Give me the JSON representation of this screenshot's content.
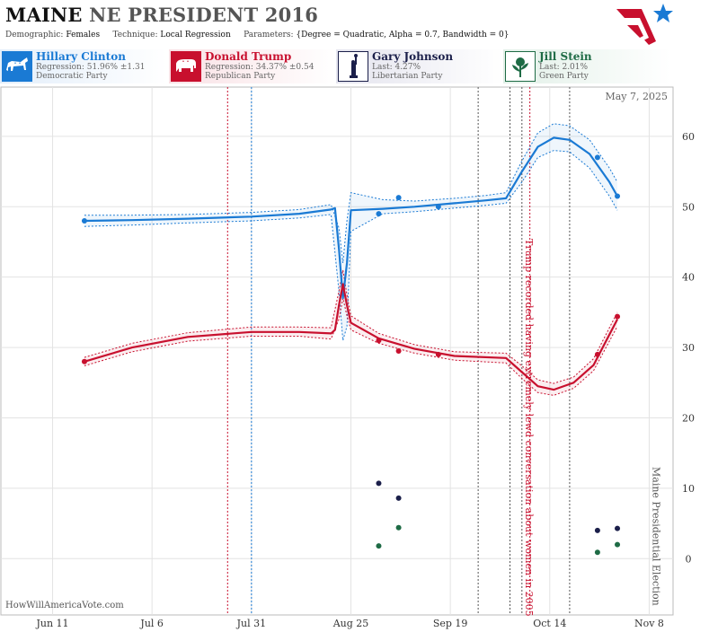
{
  "header": {
    "state": "MAINE",
    "title_rest": "NE PRESIDENT 2016",
    "demographic_label": "Demographic:",
    "demographic_value": "Females",
    "technique_label": "Technique:",
    "technique_value": "Local Regression",
    "parameters_label": "Parameters:",
    "parameters_value": "{Degree = Quadratic, Alpha = 0.7, Bandwidth = 0}"
  },
  "candidates": [
    {
      "name": "Hillary Clinton",
      "line1": "Regression: 51.96% ±1.31",
      "line2": "Democratic Party",
      "color": "#1a7ad4",
      "icon": "donkey-icon"
    },
    {
      "name": "Donald Trump",
      "line1": "Regression: 34.37% ±0.54",
      "line2": "Republican Party",
      "color": "#c8102e",
      "icon": "elephant-icon"
    },
    {
      "name": "Gary Johnson",
      "line1": "Last: 4.27%",
      "line2": "Libertarian Party",
      "color": "#1b1f4a",
      "icon": "liberty-icon"
    },
    {
      "name": "Jill Stein",
      "line1": "Last: 2.01%",
      "line2": "Green Party",
      "color": "#1e6b45",
      "icon": "flower-icon"
    }
  ],
  "footer": "HowWillAmericaVote.com",
  "chart_data": {
    "type": "line",
    "date_label": "May 7, 2025",
    "x_tick_labels": [
      "Jun 11",
      "Jul 6",
      "Jul 31",
      "Aug 25",
      "Sep 19",
      "Oct 14",
      "Nov 8"
    ],
    "x_tick_dates": [
      "2016-06-11",
      "2016-07-06",
      "2016-07-31",
      "2016-08-25",
      "2016-09-19",
      "2016-10-14",
      "2016-11-08"
    ],
    "xlim": [
      "2016-05-29",
      "2016-11-14"
    ],
    "y_ticks": [
      0,
      10,
      20,
      30,
      40,
      50,
      60
    ],
    "ylim": [
      -8,
      67
    ],
    "grid": true,
    "annotations": [
      {
        "date": "2016-10-07",
        "text": "Trump recorded having extremely lewd conversation about women in 2005",
        "color": "#c8102e"
      },
      {
        "date": "2016-11-08",
        "text": "Maine Presidential Election",
        "color": "#555555"
      }
    ],
    "event_lines": [
      {
        "date": "2016-07-25",
        "color": "#c8102e"
      },
      {
        "date": "2016-07-31",
        "color": "#1a7ad4"
      },
      {
        "date": "2016-09-26",
        "color": "#555555"
      },
      {
        "date": "2016-10-04",
        "color": "#555555"
      },
      {
        "date": "2016-10-07",
        "color": "#555555"
      },
      {
        "date": "2016-10-09",
        "color": "#c8102e"
      },
      {
        "date": "2016-10-19",
        "color": "#555555"
      }
    ],
    "series": [
      {
        "name": "Hillary Clinton",
        "color": "#1a7ad4",
        "trend": [
          [
            "2016-06-19",
            48.0
          ],
          [
            "2016-07-01",
            48.1
          ],
          [
            "2016-07-15",
            48.3
          ],
          [
            "2016-07-31",
            48.6
          ],
          [
            "2016-08-12",
            49.0
          ],
          [
            "2016-08-20",
            49.6
          ],
          [
            "2016-08-21",
            49.8
          ],
          [
            "2016-08-22",
            44.0
          ],
          [
            "2016-08-23",
            37.0
          ],
          [
            "2016-08-24",
            42.0
          ],
          [
            "2016-08-25",
            49.5
          ],
          [
            "2016-09-02",
            49.7
          ],
          [
            "2016-09-10",
            50.0
          ],
          [
            "2016-09-20",
            50.5
          ],
          [
            "2016-09-28",
            50.9
          ],
          [
            "2016-10-03",
            51.2
          ],
          [
            "2016-10-07",
            55.0
          ],
          [
            "2016-10-11",
            58.5
          ],
          [
            "2016-10-15",
            59.8
          ],
          [
            "2016-10-19",
            59.5
          ],
          [
            "2016-10-24",
            57.5
          ],
          [
            "2016-10-29",
            53.5
          ],
          [
            "2016-10-31",
            51.5
          ]
        ],
        "band": [
          [
            "2016-06-19",
            47.2,
            48.8
          ],
          [
            "2016-07-01",
            47.4,
            48.8
          ],
          [
            "2016-07-15",
            47.7,
            48.9
          ],
          [
            "2016-07-31",
            48.0,
            49.2
          ],
          [
            "2016-08-12",
            48.4,
            49.6
          ],
          [
            "2016-08-20",
            48.9,
            50.3
          ],
          [
            "2016-08-22",
            38.0,
            47.0
          ],
          [
            "2016-08-23",
            31.0,
            42.0
          ],
          [
            "2016-08-24",
            33.0,
            48.0
          ],
          [
            "2016-08-25",
            46.5,
            52.0
          ],
          [
            "2016-09-02",
            49.0,
            51.0
          ],
          [
            "2016-09-10",
            49.3,
            50.8
          ],
          [
            "2016-09-20",
            49.8,
            51.2
          ],
          [
            "2016-09-28",
            50.2,
            51.6
          ],
          [
            "2016-10-03",
            50.5,
            52.0
          ],
          [
            "2016-10-07",
            53.5,
            56.5
          ],
          [
            "2016-10-11",
            57.0,
            60.5
          ],
          [
            "2016-10-15",
            58.0,
            61.8
          ],
          [
            "2016-10-19",
            57.8,
            61.5
          ],
          [
            "2016-10-24",
            55.5,
            59.5
          ],
          [
            "2016-10-29",
            51.5,
            55.5
          ],
          [
            "2016-10-31",
            49.5,
            53.5
          ]
        ],
        "points": [
          [
            "2016-06-19",
            48.0
          ],
          [
            "2016-09-01",
            49.0
          ],
          [
            "2016-09-06",
            51.3
          ],
          [
            "2016-09-16",
            50.0
          ],
          [
            "2016-10-26",
            57.0
          ],
          [
            "2016-10-31",
            51.5
          ]
        ]
      },
      {
        "name": "Donald Trump",
        "color": "#c8102e",
        "trend": [
          [
            "2016-06-19",
            28.0
          ],
          [
            "2016-07-01",
            30.0
          ],
          [
            "2016-07-15",
            31.5
          ],
          [
            "2016-07-31",
            32.2
          ],
          [
            "2016-08-12",
            32.2
          ],
          [
            "2016-08-20",
            32.0
          ],
          [
            "2016-08-21",
            32.5
          ],
          [
            "2016-08-22",
            36.0
          ],
          [
            "2016-08-23",
            39.0
          ],
          [
            "2016-08-24",
            36.0
          ],
          [
            "2016-08-25",
            33.5
          ],
          [
            "2016-09-01",
            31.3
          ],
          [
            "2016-09-10",
            29.8
          ],
          [
            "2016-09-20",
            28.8
          ],
          [
            "2016-10-03",
            28.5
          ],
          [
            "2016-10-07",
            26.5
          ],
          [
            "2016-10-11",
            24.5
          ],
          [
            "2016-10-15",
            24.0
          ],
          [
            "2016-10-20",
            25.0
          ],
          [
            "2016-10-25",
            27.5
          ],
          [
            "2016-10-31",
            34.0
          ]
        ],
        "band": [
          [
            "2016-06-19",
            27.4,
            28.6
          ],
          [
            "2016-07-01",
            29.4,
            30.6
          ],
          [
            "2016-07-15",
            30.9,
            32.1
          ],
          [
            "2016-07-31",
            31.6,
            32.9
          ],
          [
            "2016-08-12",
            31.6,
            32.9
          ],
          [
            "2016-08-20",
            31.2,
            32.8
          ],
          [
            "2016-08-22",
            34.0,
            38.0
          ],
          [
            "2016-08-23",
            37.0,
            41.0
          ],
          [
            "2016-08-24",
            34.5,
            37.5
          ],
          [
            "2016-08-25",
            32.5,
            34.5
          ],
          [
            "2016-09-01",
            30.6,
            32.0
          ],
          [
            "2016-09-10",
            29.2,
            30.4
          ],
          [
            "2016-09-20",
            28.2,
            29.4
          ],
          [
            "2016-10-03",
            27.8,
            29.2
          ],
          [
            "2016-10-07",
            25.6,
            27.4
          ],
          [
            "2016-10-11",
            23.6,
            25.4
          ],
          [
            "2016-10-15",
            23.2,
            24.9
          ],
          [
            "2016-10-20",
            24.2,
            25.8
          ],
          [
            "2016-10-25",
            26.7,
            28.4
          ],
          [
            "2016-10-31",
            33.0,
            35.0
          ]
        ],
        "points": [
          [
            "2016-06-19",
            28.0
          ],
          [
            "2016-09-01",
            31.0
          ],
          [
            "2016-09-06",
            29.5
          ],
          [
            "2016-09-16",
            29.0
          ],
          [
            "2016-10-26",
            29.0
          ],
          [
            "2016-10-31",
            34.4
          ]
        ]
      },
      {
        "name": "Gary Johnson",
        "color": "#1b1f4a",
        "points": [
          [
            "2016-09-01",
            10.7
          ],
          [
            "2016-09-06",
            8.6
          ],
          [
            "2016-10-26",
            4.0
          ],
          [
            "2016-10-31",
            4.3
          ]
        ]
      },
      {
        "name": "Jill Stein",
        "color": "#1e6b45",
        "points": [
          [
            "2016-09-01",
            1.8
          ],
          [
            "2016-09-06",
            4.4
          ],
          [
            "2016-10-26",
            0.9
          ],
          [
            "2016-10-31",
            2.0
          ]
        ]
      }
    ]
  }
}
